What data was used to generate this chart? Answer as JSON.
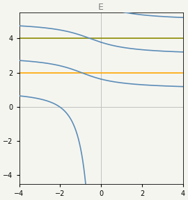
{
  "title": "E",
  "xlim": [
    -4,
    4
  ],
  "ylim": [
    -4.5,
    5.5
  ],
  "yticks": [
    -4,
    -2,
    0,
    2,
    4
  ],
  "xticks": [
    -4,
    -2,
    0,
    2,
    4
  ],
  "hline1_y": 4.0,
  "hline1_color": "#8B8B00",
  "hline2_y": 2.0,
  "hline2_color": "#FFA500",
  "blue_color": "#5B8DB8",
  "background_color": "#f5f5f0",
  "grid_color": "#c0c0c0"
}
